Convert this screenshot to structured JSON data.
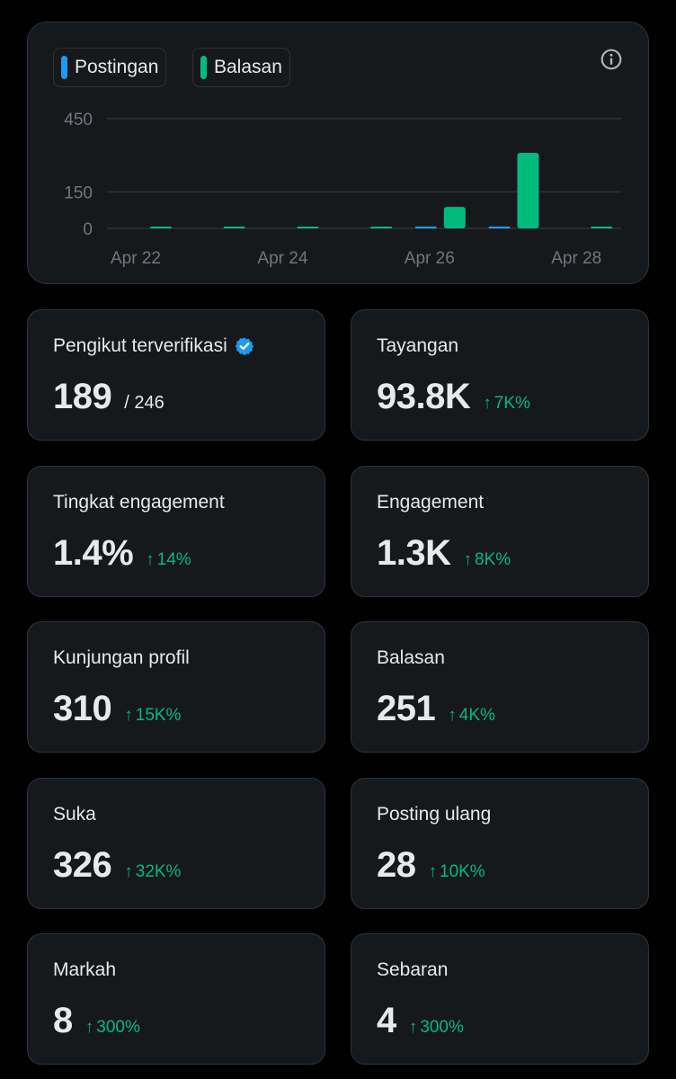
{
  "chart": {
    "legend": [
      {
        "label": "Postingan",
        "color": "#1d9bf0"
      },
      {
        "label": "Balasan",
        "color": "#00ba7c"
      }
    ]
  },
  "chart_data": {
    "type": "bar",
    "categories": [
      "Apr 22",
      "Apr 23",
      "Apr 24",
      "Apr 25",
      "Apr 26",
      "Apr 27",
      "Apr 28"
    ],
    "x_tick_labels": [
      "Apr 22",
      "Apr 24",
      "Apr 26",
      "Apr 28"
    ],
    "y_ticks": [
      0,
      150,
      450
    ],
    "ylim": [
      0,
      450
    ],
    "series": [
      {
        "name": "Postingan",
        "color": "#1d9bf0",
        "values": [
          0,
          0,
          0,
          0,
          8,
          8,
          0
        ]
      },
      {
        "name": "Balasan",
        "color": "#00ba7c",
        "values": [
          2,
          2,
          2,
          2,
          88,
          310,
          2
        ]
      }
    ],
    "grid": true,
    "legend_position": "top-left"
  },
  "stats": [
    {
      "label": "Pengikut terverifikasi",
      "value": "189",
      "total": "/ 246",
      "verified": true
    },
    {
      "label": "Tayangan",
      "value": "93.8K",
      "change": "7K%"
    },
    {
      "label": "Tingkat engagement",
      "value": "1.4%",
      "change": "14%"
    },
    {
      "label": "Engagement",
      "value": "1.3K",
      "change": "8K%"
    },
    {
      "label": "Kunjungan profil",
      "value": "310",
      "change": "15K%"
    },
    {
      "label": "Balasan",
      "value": "251",
      "change": "4K%"
    },
    {
      "label": "Suka",
      "value": "326",
      "change": "32K%"
    },
    {
      "label": "Posting ulang",
      "value": "28",
      "change": "10K%"
    },
    {
      "label": "Markah",
      "value": "8",
      "change": "300%"
    },
    {
      "label": "Sebaran",
      "value": "4",
      "change": "300%"
    }
  ],
  "icons": {
    "info": "info-icon",
    "verified": "verified-badge-icon",
    "up_arrow": "↑"
  }
}
